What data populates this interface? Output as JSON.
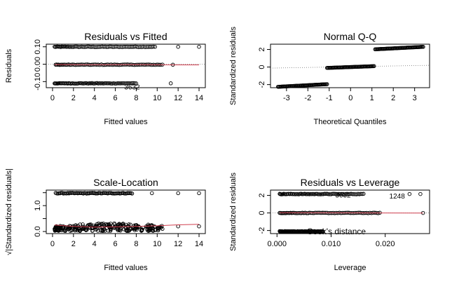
{
  "chart_data": [
    {
      "type": "scatter",
      "title": "Residuals vs Fitted",
      "xlabel": "Fitted values",
      "ylabel": "Residuals",
      "xlim": [
        -0.6,
        14.6
      ],
      "ylim": [
        -0.135,
        0.115
      ],
      "xticks": [
        0,
        2,
        4,
        6,
        8,
        10,
        12,
        14
      ],
      "xtick_labels": [
        "0",
        "2",
        "4",
        "6",
        "8",
        "10",
        "12",
        "14"
      ],
      "yticks": [
        -0.1,
        0.0,
        0.1
      ],
      "ytick_labels": [
        "-0.10",
        "0.00",
        "0.10"
      ],
      "bands": [
        {
          "y": 0.1,
          "x_from": 0.2,
          "x_to": 9.8,
          "extra_x": [
            12.0,
            14.0
          ]
        },
        {
          "y": -0.003,
          "x_from": 0.3,
          "x_to": 10.5,
          "extra_x": [
            11.5
          ]
        },
        {
          "y": -0.11,
          "x_from": 0.2,
          "x_to": 8.0,
          "extra_x": [
            11.3
          ]
        }
      ],
      "point_labels": [
        {
          "x": 7.6,
          "y": -0.128,
          "text": "3632"
        }
      ],
      "smooth_line": {
        "x": [
          0.2,
          4,
          8,
          12,
          14
        ],
        "y": [
          -0.002,
          -0.003,
          -0.002,
          -0.004,
          -0.004
        ],
        "color": "#d04050"
      },
      "reference_line": {
        "y": 0,
        "style": "dotted"
      }
    },
    {
      "type": "scatter",
      "title": "Normal Q-Q",
      "xlabel": "Theoretical Quantiles",
      "ylabel": "Standardized residuals",
      "xlim": [
        -3.75,
        3.7
      ],
      "ylim": [
        -2.35,
        2.6
      ],
      "xticks": [
        -3,
        -2,
        -1,
        0,
        1,
        2,
        3
      ],
      "xtick_labels": [
        "-3",
        "-2",
        "-1",
        "0",
        "1",
        "2",
        "3"
      ],
      "yticks": [
        -2,
        0,
        2
      ],
      "ytick_labels": [
        "-2",
        "0",
        "2"
      ],
      "segments": [
        {
          "x_from": -3.4,
          "x_to": -1.1,
          "y_from": -2.25,
          "y_to": -1.95
        },
        {
          "x_from": -1.1,
          "x_to": 1.1,
          "y_from": -0.1,
          "y_to": 0.1
        },
        {
          "x_from": 1.15,
          "x_to": 3.4,
          "y_from": 2.02,
          "y_to": 2.3
        }
      ],
      "reference_line": {
        "x": [
          -3.75,
          3.7
        ],
        "y": [
          -0.12,
          0.2
        ],
        "style": "dotted"
      }
    },
    {
      "type": "scatter",
      "title": "Scale-Location",
      "xlabel": "Fitted values",
      "ylabel": "√|Standardized residuals|",
      "xlim": [
        -0.6,
        14.6
      ],
      "ylim": [
        -0.08,
        1.6
      ],
      "xticks": [
        0,
        2,
        4,
        6,
        8,
        10,
        12,
        14
      ],
      "xtick_labels": [
        "0",
        "2",
        "4",
        "6",
        "8",
        "10",
        "12",
        "14"
      ],
      "yticks": [
        0.0,
        0.5,
        1.0,
        1.5
      ],
      "ytick_labels": [
        "0.0",
        "",
        "1.0",
        ""
      ],
      "upper_band": {
        "y": 1.48,
        "x_from": 0.3,
        "x_to": 7.6,
        "extra_x": [
          9.5,
          12.0,
          14.0
        ]
      },
      "lower_cloud": {
        "x_from": 0.2,
        "x_to": 10.6,
        "y_from": 0.02,
        "y_to": 0.32,
        "extra_x": [
          12.0,
          14.0
        ]
      },
      "smooth_line": {
        "x": [
          0.2,
          2,
          4,
          6,
          8,
          10,
          12,
          14
        ],
        "y": [
          0.25,
          0.2,
          0.17,
          0.18,
          0.2,
          0.22,
          0.26,
          0.28
        ],
        "color": "#d04050"
      }
    },
    {
      "type": "scatter",
      "title": "Residuals vs Leverage",
      "xlabel": "Leverage",
      "ylabel": "Standardized residuals",
      "xlim": [
        -0.0012,
        0.0282
      ],
      "ylim": [
        -2.35,
        2.6
      ],
      "xticks": [
        0.0,
        0.01,
        0.02
      ],
      "xtick_labels": [
        "0.000",
        "0.010",
        "0.020"
      ],
      "yticks": [
        -2,
        0,
        2
      ],
      "ytick_labels": [
        "-2",
        "0",
        "2"
      ],
      "bands": [
        {
          "y": 2.15,
          "x_from": 0.0005,
          "x_to": 0.016,
          "extra_x": [
            0.0245,
            0.0265
          ]
        },
        {
          "y": 0.0,
          "x_from": 0.0005,
          "x_to": 0.019,
          "extra_x": [
            0.027
          ]
        },
        {
          "y": -2.1,
          "x_from": 0.0005,
          "x_to": 0.0085
        }
      ],
      "point_labels": [
        {
          "x": 0.0122,
          "y": 2.1,
          "text": "3632"
        },
        {
          "x": 0.0222,
          "y": 1.95,
          "text": "1248"
        }
      ],
      "legend_text": "Cook's distance",
      "smooth_line": {
        "x": [
          0.0005,
          0.01,
          0.02,
          0.027
        ],
        "y": [
          0.02,
          0.01,
          0.0,
          -0.02
        ],
        "color": "#d04050"
      },
      "reference_line": {
        "y": 0,
        "style": "dotted"
      }
    }
  ]
}
